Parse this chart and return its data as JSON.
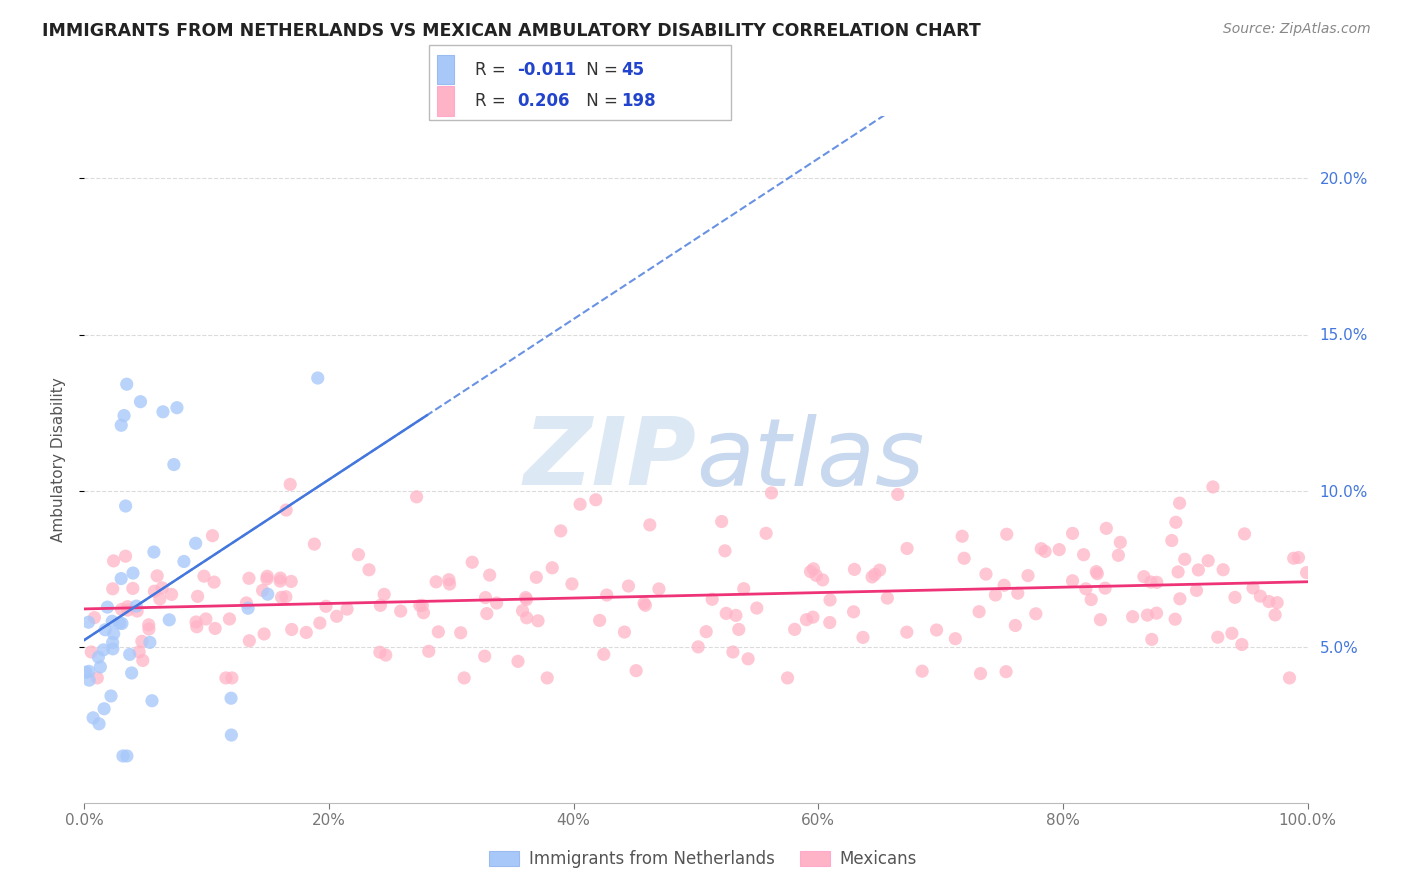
{
  "title": "IMMIGRANTS FROM NETHERLANDS VS MEXICAN AMBULATORY DISABILITY CORRELATION CHART",
  "source": "Source: ZipAtlas.com",
  "ylabel": "Ambulatory Disability",
  "legend_label_1": "Immigrants from Netherlands",
  "legend_label_2": "Mexicans",
  "R1": -0.011,
  "N1": 45,
  "R2": 0.206,
  "N2": 198,
  "color1": "#a8c8fa",
  "color2": "#ffb3c6",
  "trend_color1": "#4477dd",
  "trend_color2": "#ee3377",
  "watermark_zip": "ZIP",
  "watermark_atlas": "atlas",
  "watermark_color_zip": "#dce8f5",
  "watermark_color_atlas": "#c5d8ee",
  "background_color": "#ffffff",
  "grid_color": "#cccccc",
  "xlim": [
    0,
    100
  ],
  "ylim": [
    0,
    22
  ],
  "title_color": "#222222",
  "title_fontsize": 12.5,
  "axis_label_color": "#555555",
  "tick_color": "#4477dd",
  "source_color": "#888888",
  "legend_R_color": "#2244cc",
  "legend_N_color": "#2244cc",
  "x_ticks": [
    0,
    20,
    40,
    60,
    80,
    100
  ],
  "x_labels": [
    "0.0%",
    "20%",
    "40%",
    "60%",
    "80%",
    "100.0%"
  ],
  "y_ticks": [
    5,
    10,
    15,
    20
  ],
  "y_labels": [
    "5.0%",
    "10.0%",
    "15.0%",
    "20.0%"
  ]
}
